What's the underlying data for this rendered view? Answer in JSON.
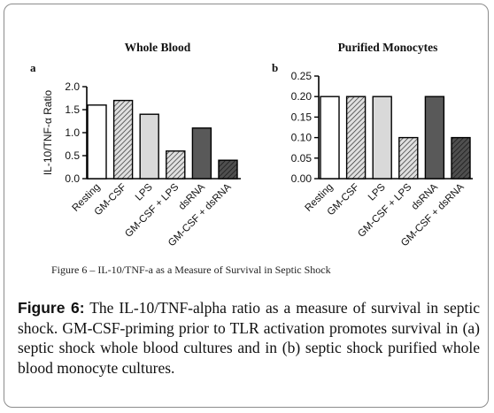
{
  "figure_inner_caption": "Figure 6 – IL-10/TNF-a as a Measure of Survival in Septic Shock",
  "caption": {
    "label": "Figure 6:",
    "text": " The IL-10/TNF-alpha ratio as a measure of survival in septic shock. GM-CSF-priming prior to TLR activation promotes survival in (a) septic shock whole blood cultures and in (b) septic shock purified whole blood monocyte cultures."
  },
  "chart_data": [
    {
      "type": "bar",
      "panel": "a",
      "title": "Whole Blood",
      "ylabel": "IL-10/TNF-α Ratio",
      "xlabel": "",
      "ylim": [
        0,
        2.0
      ],
      "yticks": [
        "0.0",
        "0.5",
        "1.0",
        "1.5",
        "2.0"
      ],
      "categories": [
        "Resting",
        "GM-CSF",
        "LPS",
        "GM-CSF + LPS",
        "dsRNA",
        "GM-CSF + dsRNA"
      ],
      "values": [
        1.6,
        1.7,
        1.4,
        0.6,
        1.1,
        0.4
      ],
      "bar_styles": [
        "white",
        "hatch-light",
        "light-gray",
        "hatch-light",
        "dark-gray",
        "hatch-dark"
      ]
    },
    {
      "type": "bar",
      "panel": "b",
      "title": "Purified Monocytes",
      "ylabel": "",
      "xlabel": "",
      "ylim": [
        0,
        0.25
      ],
      "yticks": [
        "0.00",
        "0.05",
        "0.10",
        "0.15",
        "0.20",
        "0.25"
      ],
      "categories": [
        "Resting",
        "GM-CSF",
        "LPS",
        "GM-CSF + LPS",
        "dsRNA",
        "GM-CSF + dsRNA"
      ],
      "values": [
        0.2,
        0.2,
        0.2,
        0.1,
        0.2,
        0.1
      ],
      "bar_styles": [
        "white",
        "hatch-light",
        "light-gray",
        "hatch-light",
        "dark-gray",
        "hatch-dark"
      ]
    }
  ],
  "colors": {
    "white": "#ffffff",
    "light-gray": "#d9d9d9",
    "dark-gray": "#595959",
    "hatch-light-bg": "#e0e0e0",
    "hatch-dark-bg": "#4f4f4f",
    "stroke": "#000000"
  }
}
